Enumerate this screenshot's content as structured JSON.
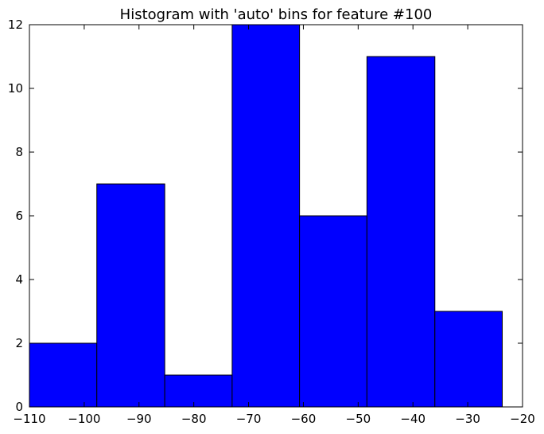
{
  "chart_data": {
    "type": "bar",
    "title": "Histogram with 'auto' bins for feature #100",
    "xlabel": "",
    "ylabel": "",
    "xlim": [
      -110,
      -20
    ],
    "ylim": [
      0,
      12
    ],
    "xticks": [
      -110,
      -100,
      -90,
      -80,
      -70,
      -60,
      -50,
      -40,
      -30,
      -20
    ],
    "xtick_labels": [
      "−110",
      "−100",
      "−90",
      "−80",
      "−70",
      "−60",
      "−50",
      "−40",
      "−30",
      "−20"
    ],
    "yticks": [
      0,
      2,
      4,
      6,
      8,
      10,
      12
    ],
    "ytick_labels": [
      "0",
      "2",
      "4",
      "6",
      "8",
      "10",
      "12"
    ],
    "bins": [
      {
        "start": -110.0,
        "end": -97.7,
        "count": 2
      },
      {
        "start": -97.7,
        "end": -85.3,
        "count": 7
      },
      {
        "start": -85.3,
        "end": -73.0,
        "count": 1
      },
      {
        "start": -73.0,
        "end": -60.7,
        "count": 12
      },
      {
        "start": -60.7,
        "end": -48.4,
        "count": 6
      },
      {
        "start": -48.4,
        "end": -36.0,
        "count": 11
      },
      {
        "start": -36.0,
        "end": -23.7,
        "count": 3
      }
    ],
    "grid": false,
    "colors": {
      "bar_fill": "#0000ff",
      "bar_edge": "#000000",
      "frame": "#000000",
      "background": "#ffffff"
    }
  }
}
